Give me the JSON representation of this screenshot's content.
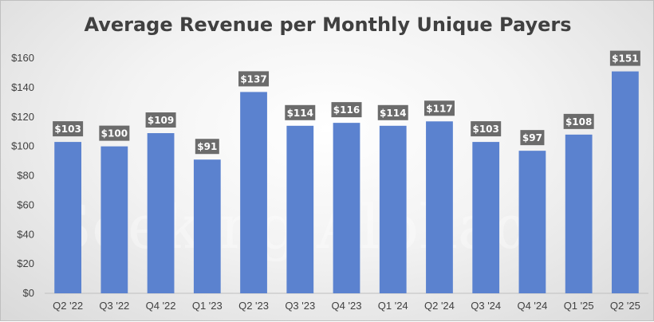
{
  "chart_data": {
    "type": "bar",
    "title": "Average Revenue per Monthly Unique Payers",
    "xlabel": "",
    "ylabel": "",
    "categories": [
      "Q2 '22",
      "Q3 '22",
      "Q4 '22",
      "Q1 '23",
      "Q2 '23",
      "Q3 '23",
      "Q4 '23",
      "Q1 '24",
      "Q2 '24",
      "Q3 '24",
      "Q4 '24",
      "Q1 '25",
      "Q2 '25"
    ],
    "values": [
      103,
      100,
      109,
      91,
      137,
      114,
      116,
      114,
      117,
      103,
      97,
      108,
      151
    ],
    "data_labels": [
      "$103",
      "$100",
      "$109",
      "$91",
      "$137",
      "$114",
      "$116",
      "$114",
      "$117",
      "$103",
      "$97",
      "$108",
      "$151"
    ],
    "ylim": [
      0,
      160
    ],
    "yticks": [
      0,
      20,
      40,
      60,
      80,
      100,
      120,
      140,
      160
    ],
    "ytick_labels": [
      "$0",
      "$20",
      "$40",
      "$60",
      "$80",
      "$100",
      "$120",
      "$140",
      "$160"
    ],
    "grid": false,
    "legend": false,
    "bar_color": "#5b82cf",
    "label_bg_color": "#6b6b6b"
  },
  "watermark": "Seeking Alphaα"
}
